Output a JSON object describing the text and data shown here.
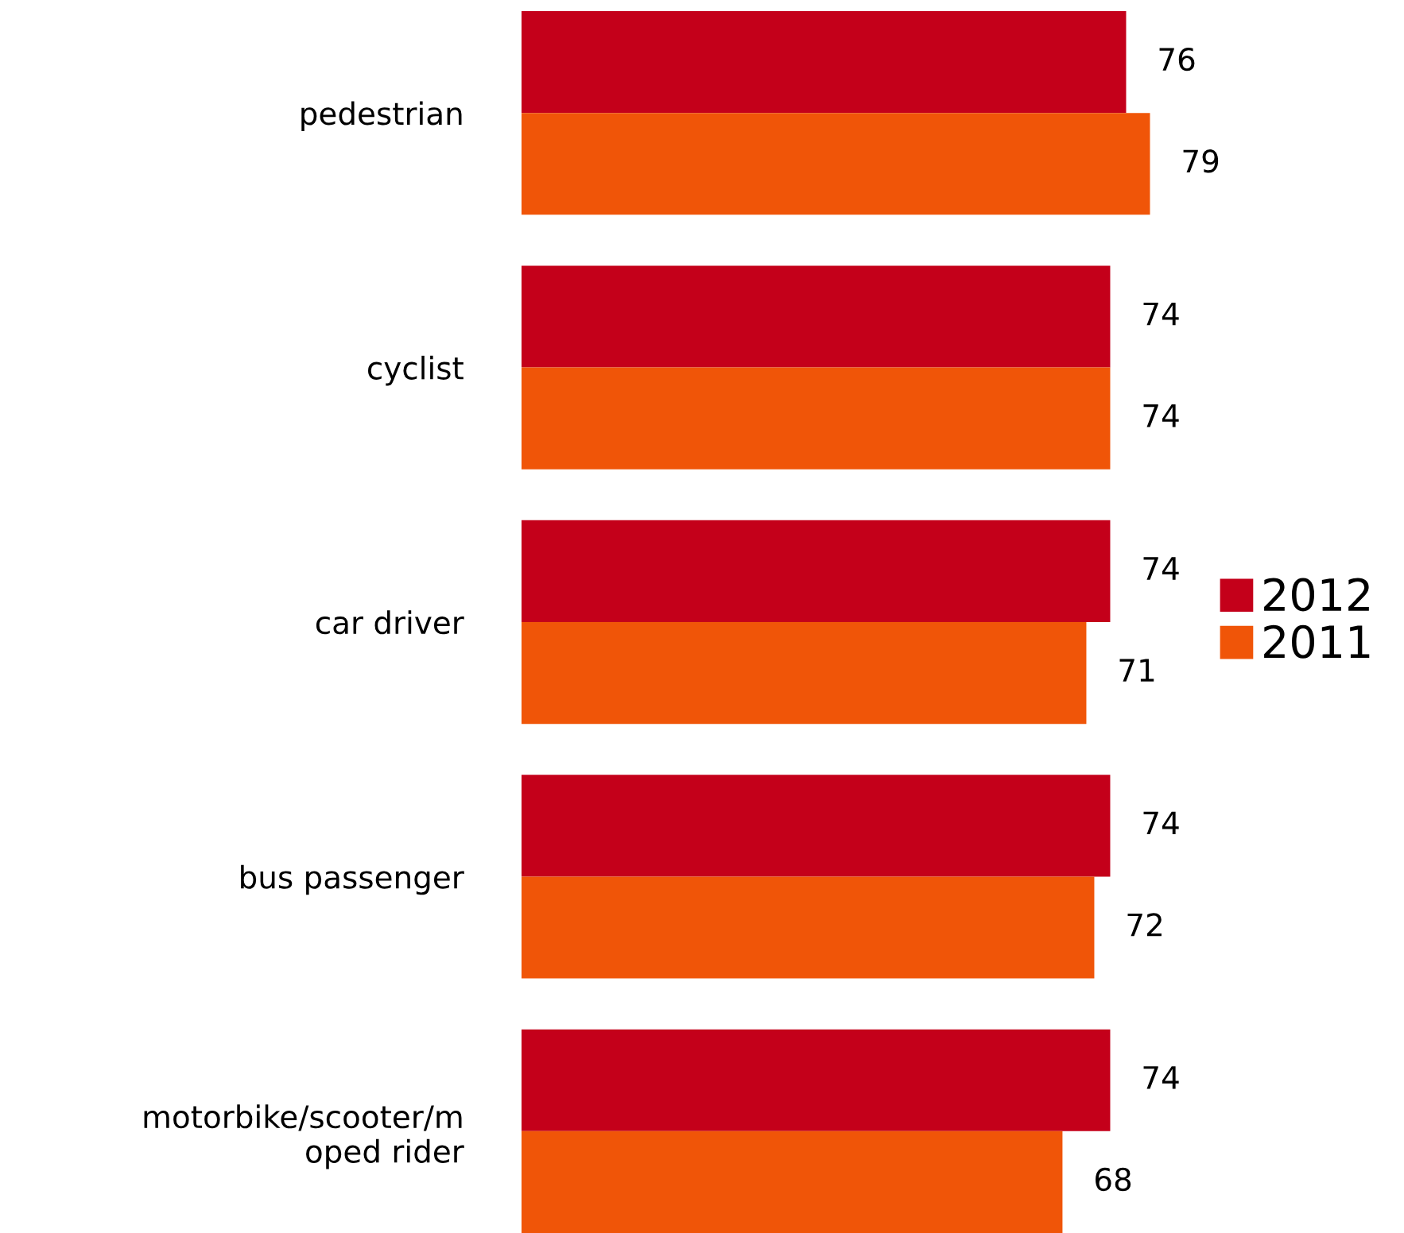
{
  "chart_data": {
    "type": "bar",
    "orientation": "horizontal",
    "categories": [
      "pedestrian",
      "cyclist",
      "car driver",
      "bus passenger",
      "motorbike/scooter/m\noped rider"
    ],
    "series": [
      {
        "name": "2012",
        "color": "#c4001a",
        "values": [
          76,
          74,
          74,
          74,
          74
        ]
      },
      {
        "name": "2011",
        "color": "#f05508",
        "values": [
          79,
          74,
          71,
          72,
          68
        ]
      }
    ],
    "data_labels": true,
    "legend": "right",
    "grid": false,
    "tick_labels": "y"
  }
}
